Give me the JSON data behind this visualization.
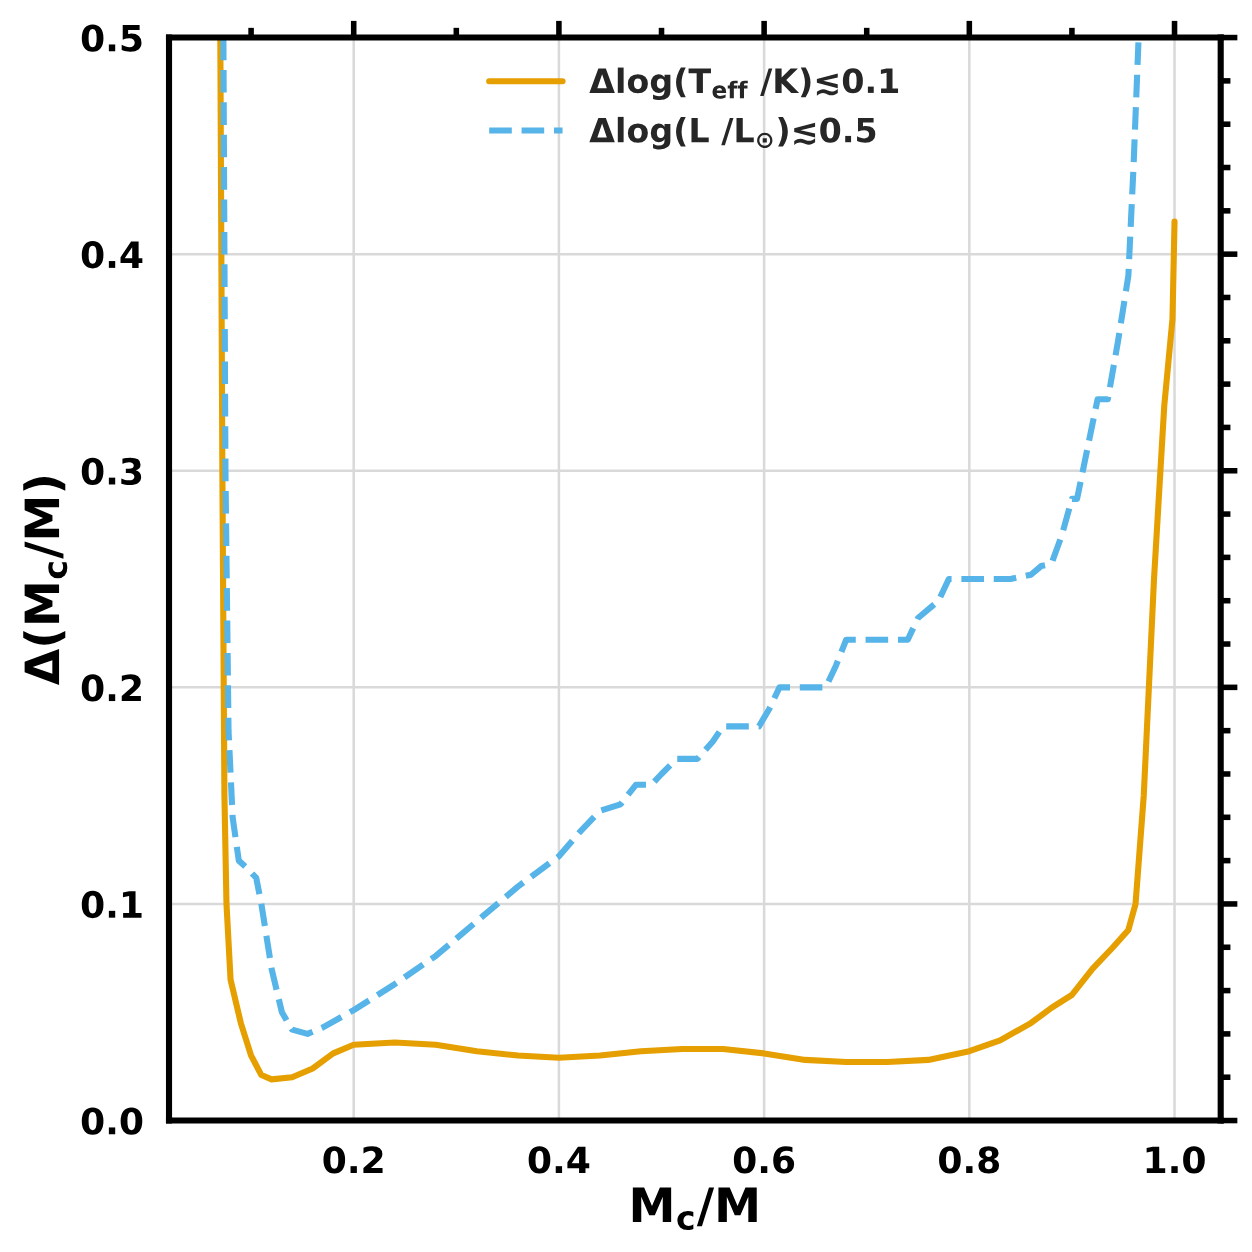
{
  "chart_data": {
    "type": "line",
    "xlabel": "M$_{c}$/M",
    "ylabel": "Δ(M$_{c}$/M)",
    "xlim": [
      0.02,
      1.045
    ],
    "ylim": [
      0,
      0.5
    ],
    "xticks": [
      0.2,
      0.4,
      0.6,
      0.8,
      {
        "value": 1.0,
        "label": "1.0"
      }
    ],
    "yticks": [
      {
        "value": 0.0,
        "label": "0.0"
      },
      0.1,
      0.2,
      0.3,
      0.4,
      0.5
    ],
    "grid": true,
    "legend": "top",
    "series": [
      {
        "name": "Δlog(T$_{eff}$ /K)≲0.1",
        "color": "#e69f00",
        "line_style": "solid",
        "x": [
          0.07,
          0.072,
          0.074,
          0.076,
          0.08,
          0.09,
          0.1,
          0.11,
          0.12,
          0.14,
          0.16,
          0.18,
          0.2,
          0.24,
          0.28,
          0.32,
          0.36,
          0.4,
          0.44,
          0.48,
          0.52,
          0.56,
          0.6,
          0.64,
          0.68,
          0.72,
          0.76,
          0.8,
          0.83,
          0.86,
          0.88,
          0.9,
          0.92,
          0.94,
          0.955,
          0.962,
          0.97,
          0.98,
          0.99,
          0.998,
          1.0
        ],
        "values": [
          0.5,
          0.3,
          0.15,
          0.1,
          0.065,
          0.045,
          0.03,
          0.021,
          0.019,
          0.02,
          0.024,
          0.031,
          0.035,
          0.036,
          0.035,
          0.032,
          0.03,
          0.029,
          0.03,
          0.032,
          0.033,
          0.033,
          0.031,
          0.028,
          0.027,
          0.027,
          0.028,
          0.032,
          0.037,
          0.045,
          0.052,
          0.058,
          0.07,
          0.08,
          0.088,
          0.1,
          0.15,
          0.25,
          0.33,
          0.37,
          0.415
        ]
      },
      {
        "name": "Δlog(L /L$_{⊙}$)≲0.5",
        "color": "#56b4e9",
        "line_style": "dashed",
        "x": [
          0.073,
          0.075,
          0.078,
          0.082,
          0.088,
          0.095,
          0.105,
          0.11,
          0.12,
          0.13,
          0.14,
          0.155,
          0.17,
          0.2,
          0.24,
          0.28,
          0.32,
          0.36,
          0.4,
          0.42,
          0.44,
          0.46,
          0.475,
          0.49,
          0.5,
          0.515,
          0.535,
          0.55,
          0.56,
          0.595,
          0.605,
          0.615,
          0.66,
          0.67,
          0.68,
          0.74,
          0.75,
          0.77,
          0.78,
          0.84,
          0.86,
          0.87,
          0.88,
          0.89,
          0.9,
          0.905,
          0.915,
          0.925,
          0.935,
          0.945,
          0.955,
          0.96,
          0.965
        ],
        "values": [
          0.5,
          0.3,
          0.18,
          0.14,
          0.12,
          0.117,
          0.112,
          0.1,
          0.07,
          0.05,
          0.042,
          0.04,
          0.043,
          0.051,
          0.063,
          0.076,
          0.092,
          0.108,
          0.122,
          0.133,
          0.143,
          0.146,
          0.155,
          0.155,
          0.16,
          0.167,
          0.167,
          0.175,
          0.182,
          0.182,
          0.19,
          0.2,
          0.2,
          0.21,
          0.222,
          0.222,
          0.232,
          0.24,
          0.25,
          0.25,
          0.252,
          0.256,
          0.257,
          0.27,
          0.287,
          0.287,
          0.31,
          0.333,
          0.333,
          0.36,
          0.39,
          0.44,
          0.5
        ]
      }
    ]
  }
}
